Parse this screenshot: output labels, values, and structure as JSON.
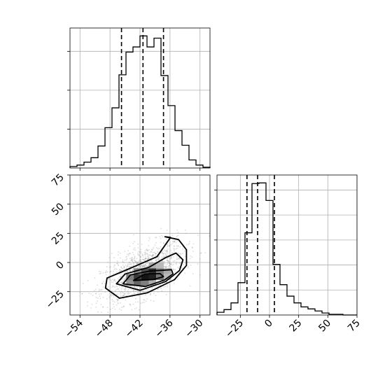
{
  "chart_data": {
    "type": "corner",
    "grid": true,
    "parameters": [
      {
        "name": "",
        "range": [
          -56,
          -28
        ],
        "ticks": [
          -54,
          -48,
          -42,
          -36,
          -30
        ],
        "tick_labels": [
          "−54",
          "−48",
          "−42",
          "−36",
          "−30"
        ],
        "quantiles": [
          -45.7,
          -41.4,
          -37.3
        ],
        "hist_edges": [
          -56.0,
          -54.6,
          -53.2,
          -51.8,
          -50.4,
          -49.0,
          -47.6,
          -46.2,
          -44.8,
          -43.4,
          -42.0,
          -40.6,
          -39.2,
          -37.8,
          -36.4,
          -35.0,
          -33.6,
          -32.2,
          -30.8,
          -29.4,
          -28.0
        ],
        "hist_counts": [
          2,
          4,
          8,
          14,
          30,
          55,
          82,
          127,
          158,
          165,
          180,
          165,
          177,
          126,
          85,
          51,
          31,
          11,
          4,
          1
        ]
      },
      {
        "name": "",
        "range": [
          -45,
          75
        ],
        "ticks": [
          -25,
          0,
          25,
          50,
          75
        ],
        "tick_labels": [
          "−25",
          "0",
          "25",
          "50",
          "75"
        ],
        "quantiles": [
          -19.3,
          -10.2,
          4.2
        ],
        "hist_edges": [
          -45,
          -39,
          -33,
          -27,
          -21,
          -15,
          -9,
          -3,
          3,
          9,
          15,
          21,
          27,
          33,
          39,
          45,
          51,
          57,
          63,
          69,
          75
        ],
        "hist_counts": [
          4,
          8,
          18,
          48,
          122,
          195,
          196,
          170,
          75,
          45,
          28,
          18,
          12,
          9,
          6,
          3,
          1,
          1,
          0,
          0
        ]
      }
    ],
    "joint": {
      "x_param": 0,
      "y_param": 1,
      "scatter_points": "gray samples",
      "contour_levels": 4,
      "contours": [
        [
          [
            -48.9,
            -21.9
          ],
          [
            -48.6,
            -13.3
          ],
          [
            -44.5,
            -6.0
          ],
          [
            -38.6,
            5.0
          ],
          [
            -35.9,
            21.5
          ],
          [
            -37.0,
            22.1
          ],
          [
            -34.3,
            19.7
          ],
          [
            -32.7,
            10.9
          ],
          [
            -32.7,
            -2.5
          ],
          [
            -35.1,
            -14.7
          ],
          [
            -40.5,
            -25.9
          ],
          [
            -46.1,
            -30.6
          ],
          [
            -48.9,
            -21.9
          ]
        ],
        [
          [
            -46.7,
            -18.3
          ],
          [
            -45.0,
            -9.9
          ],
          [
            -40.2,
            -4.1
          ],
          [
            -36.8,
            4.3
          ],
          [
            -34.8,
            8.1
          ],
          [
            -33.4,
            2.3
          ],
          [
            -34.1,
            -6.9
          ],
          [
            -36.9,
            -16.4
          ],
          [
            -42.0,
            -23.9
          ],
          [
            -46.7,
            -18.3
          ]
        ],
        [
          [
            -45.4,
            -18.3
          ],
          [
            -43.9,
            -10.6
          ],
          [
            -40.1,
            -7.3
          ],
          [
            -35.7,
            -6.2
          ],
          [
            -35.4,
            -9.8
          ],
          [
            -37.1,
            -15.0
          ],
          [
            -40.9,
            -20.6
          ],
          [
            -45.4,
            -18.3
          ]
        ],
        [
          [
            -43.3,
            -15.4
          ],
          [
            -41.0,
            -9.9
          ],
          [
            -38.0,
            -9.5
          ],
          [
            -37.3,
            -12.1
          ],
          [
            -39.3,
            -14.6
          ],
          [
            -43.3,
            -15.4
          ]
        ]
      ],
      "density_cells": [
        {
          "x": -44.0,
          "y": -17.5,
          "level": 0.45
        },
        {
          "x": -42.5,
          "y": -17.5,
          "level": 0.65
        },
        {
          "x": -41.0,
          "y": -17.5,
          "level": 0.55
        },
        {
          "x": -39.5,
          "y": -17.5,
          "level": 0.35
        },
        {
          "x": -44.0,
          "y": -12.5,
          "level": 0.55
        },
        {
          "x": -42.5,
          "y": -12.5,
          "level": 0.85
        },
        {
          "x": -41.0,
          "y": -12.5,
          "level": 1.0
        },
        {
          "x": -39.5,
          "y": -12.5,
          "level": 0.95
        },
        {
          "x": -38.0,
          "y": -12.5,
          "level": 0.6
        },
        {
          "x": -36.5,
          "y": -12.5,
          "level": 0.3
        },
        {
          "x": -42.5,
          "y": -7.5,
          "level": 0.5
        },
        {
          "x": -41.0,
          "y": -7.5,
          "level": 0.75
        },
        {
          "x": -39.5,
          "y": -7.5,
          "level": 0.9
        },
        {
          "x": -38.0,
          "y": -7.5,
          "level": 0.55
        },
        {
          "x": -36.5,
          "y": -7.5,
          "level": 0.35
        },
        {
          "x": -39.5,
          "y": -2.5,
          "level": 0.35
        },
        {
          "x": -38.0,
          "y": -2.5,
          "level": 0.3
        }
      ]
    }
  }
}
